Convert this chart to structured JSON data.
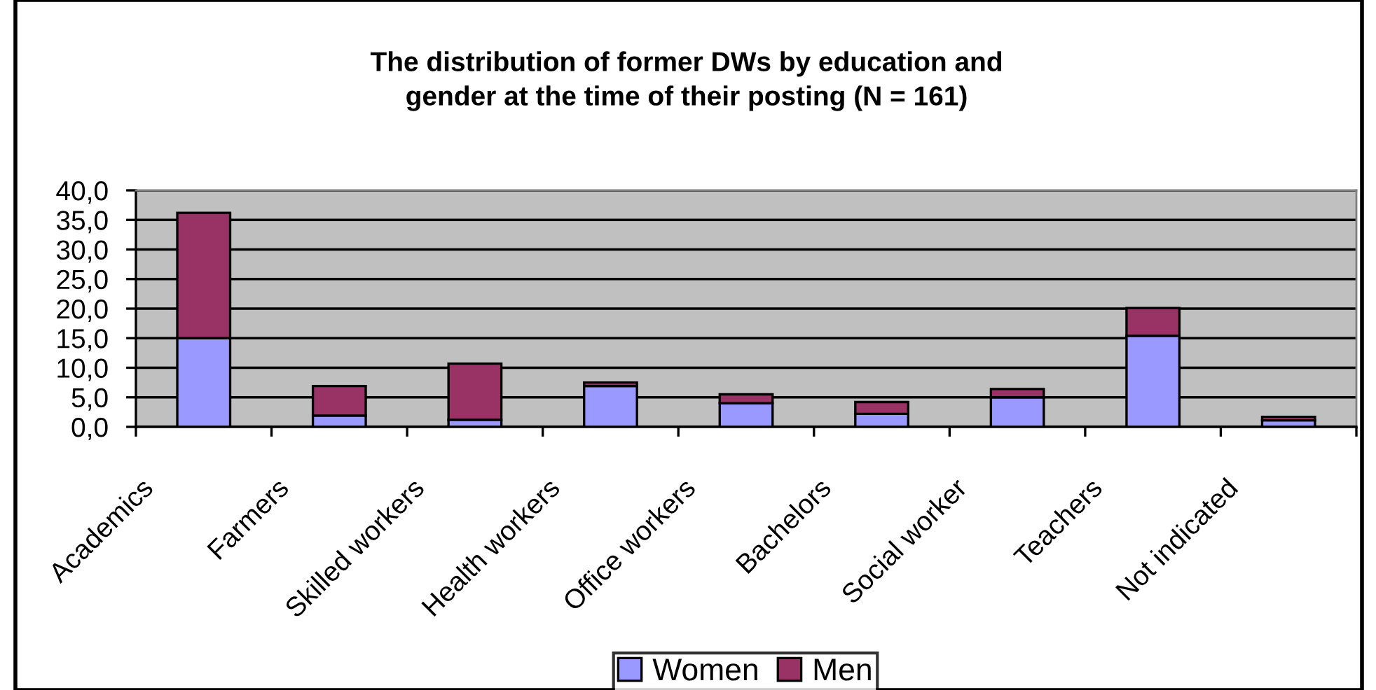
{
  "chart_data": {
    "type": "bar",
    "title": "The distribution of former DWs by education and\ngender at the time of their posting (N = 161)",
    "categories": [
      "Academics",
      "Farmers",
      "Skilled workers",
      "Health workers",
      "Office workers",
      "Bachelors",
      "Social worker",
      "Teachers",
      "Not indicated"
    ],
    "series": [
      {
        "name": "Women",
        "color": "#9999ff",
        "values": [
          15.0,
          1.9,
          1.2,
          6.9,
          4.0,
          2.2,
          5.0,
          15.4,
          1.1
        ]
      },
      {
        "name": "Men",
        "color": "#993366",
        "values": [
          21.2,
          5.0,
          9.5,
          0.6,
          1.5,
          2.0,
          1.4,
          4.7,
          0.6
        ]
      }
    ],
    "stacked": true,
    "ylim": [
      0,
      40
    ],
    "yticks": [
      {
        "value": 0,
        "label": "0,0"
      },
      {
        "value": 5,
        "label": "5,0"
      },
      {
        "value": 10,
        "label": "10,0"
      },
      {
        "value": 15,
        "label": "15,0"
      },
      {
        "value": 20,
        "label": "20,0"
      },
      {
        "value": 25,
        "label": "25,0"
      },
      {
        "value": 30,
        "label": "30,0"
      },
      {
        "value": 35,
        "label": "35,0"
      },
      {
        "value": 40,
        "label": "40,0"
      }
    ],
    "grid": "y",
    "legend": "bottom"
  }
}
